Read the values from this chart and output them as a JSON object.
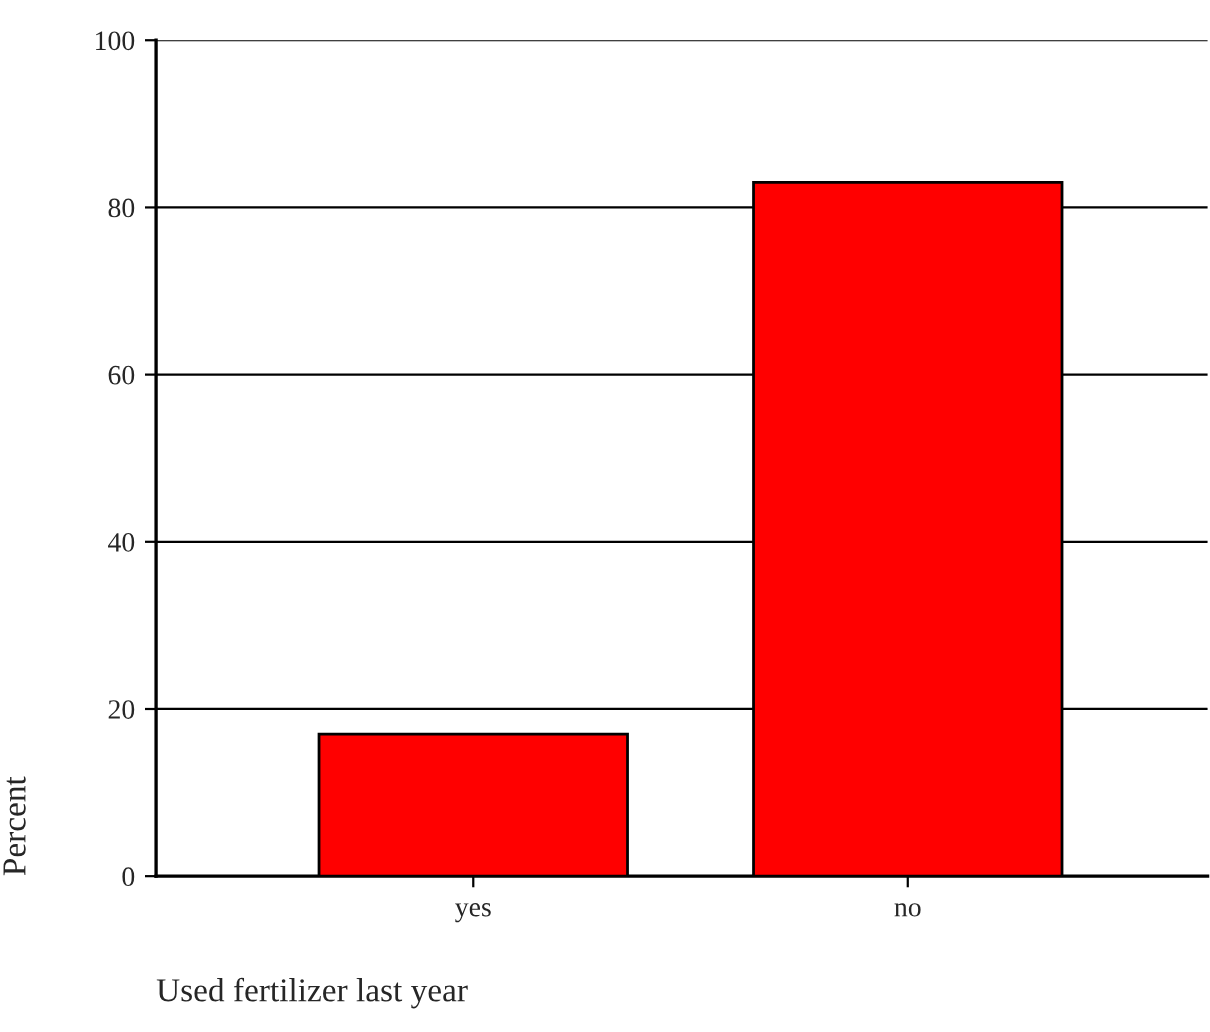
{
  "chart_data": {
    "type": "bar",
    "xlabel": "Used fertilizer last year",
    "ylabel": "Percent",
    "categories": [
      "yes",
      "no"
    ],
    "values": [
      17,
      83
    ],
    "color": "#ff0000",
    "ylim": [
      0,
      100
    ],
    "yticks": [
      0,
      20,
      40,
      60,
      80,
      100
    ],
    "grid": "y"
  }
}
